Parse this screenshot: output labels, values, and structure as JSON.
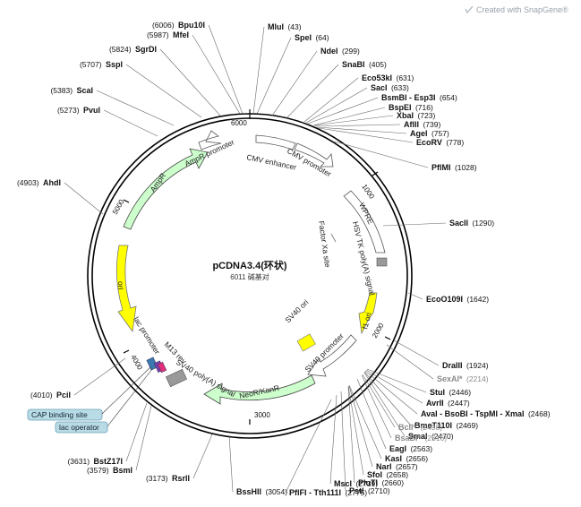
{
  "watermark": "Created with SnapGene®",
  "plasmid": {
    "name": "pCDNA3.4(环状)",
    "length_label": "6011 碱基对"
  },
  "ticks": [
    "1000",
    "2000",
    "3000",
    "4000",
    "5000",
    "6000"
  ],
  "features": {
    "cmv_enhancer": "CMV enhancer",
    "cmv_promoter": "CMV promoter",
    "wpre": "WPRE",
    "hsv_tk": "HSV TK poly(A) signal",
    "factor_xa": "Factor Xa site",
    "f1_ori": "f1 ori",
    "sv40_ori": "SV40 ori",
    "sv40_promoter": "SV40 promoter",
    "neor": "NeoR/KanR",
    "sv40_polya": "SV40 poly(A) signal",
    "m13_rev": "M13 rev",
    "lac_promoter": "lac promoter",
    "ori": "ori",
    "ampr": "AmpR",
    "ampr_promoter": "AmpR promoter"
  },
  "badges": {
    "cap": "CAP binding site",
    "lac_operator": "lac operator"
  },
  "sites": [
    {
      "name": "MluI",
      "pos": "(43)"
    },
    {
      "name": "SpeI",
      "pos": "(64)"
    },
    {
      "name": "NdeI",
      "pos": "(299)"
    },
    {
      "name": "SnaBI",
      "pos": "(405)"
    },
    {
      "name": "Eco53kI",
      "pos": "(631)"
    },
    {
      "name": "SacI",
      "pos": "(633)"
    },
    {
      "name": "BsmBI - Esp3I",
      "pos": "(654)"
    },
    {
      "name": "BspEI",
      "pos": "(716)"
    },
    {
      "name": "XbaI",
      "pos": "(723)"
    },
    {
      "name": "AflII",
      "pos": "(739)"
    },
    {
      "name": "AgeI",
      "pos": "(757)"
    },
    {
      "name": "EcoRV",
      "pos": "(778)"
    },
    {
      "name": "PflMI",
      "pos": "(1028)"
    },
    {
      "name": "SacII",
      "pos": "(1290)"
    },
    {
      "name": "EcoO109I",
      "pos": "(1642)"
    },
    {
      "name": "DraIII",
      "pos": "(1924)"
    },
    {
      "name": "SexAI*",
      "pos": "(2214)"
    },
    {
      "name": "StuI",
      "pos": "(2446)"
    },
    {
      "name": "AvrII",
      "pos": "(2447)"
    },
    {
      "name": "AvaI - BsoBI - TspMI - XmaI",
      "pos": "(2468)"
    },
    {
      "name": "BmeT110I",
      "pos": "(2469)"
    },
    {
      "name": "SmaI",
      "pos": "(2470)"
    },
    {
      "name": "BclI*",
      "pos": "(2498)"
    },
    {
      "name": "BsaBI*",
      "pos": "(2516)"
    },
    {
      "name": "EagI",
      "pos": "(2563)"
    },
    {
      "name": "KasI",
      "pos": "(2656)"
    },
    {
      "name": "NarI",
      "pos": "(2657)"
    },
    {
      "name": "SfoI",
      "pos": "(2658)"
    },
    {
      "name": "PluTI",
      "pos": "(2660)"
    },
    {
      "name": "PstI",
      "pos": "(2710)"
    },
    {
      "name": "MscI",
      "pos": "(2739)"
    },
    {
      "name": "PflFI - Tth111I",
      "pos": "(2775)"
    },
    {
      "name": "BssHII",
      "pos": "(3054)"
    },
    {
      "name": "RsrII",
      "pos": "(3173)"
    },
    {
      "name": "BsmI",
      "pos": "(3579)"
    },
    {
      "name": "BstZ17I",
      "pos": "(3631)"
    },
    {
      "name": "PciI",
      "pos": "(4010)"
    },
    {
      "name": "AhdI",
      "pos": "(4903)"
    },
    {
      "name": "PvuI",
      "pos": "(5273)"
    },
    {
      "name": "ScaI",
      "pos": "(5383)"
    },
    {
      "name": "SspI",
      "pos": "(5707)"
    },
    {
      "name": "SgrDI",
      "pos": "(5824)"
    },
    {
      "name": "MfeI",
      "pos": "(5987)"
    },
    {
      "name": "Bpu10I",
      "pos": "(6006)"
    }
  ]
}
